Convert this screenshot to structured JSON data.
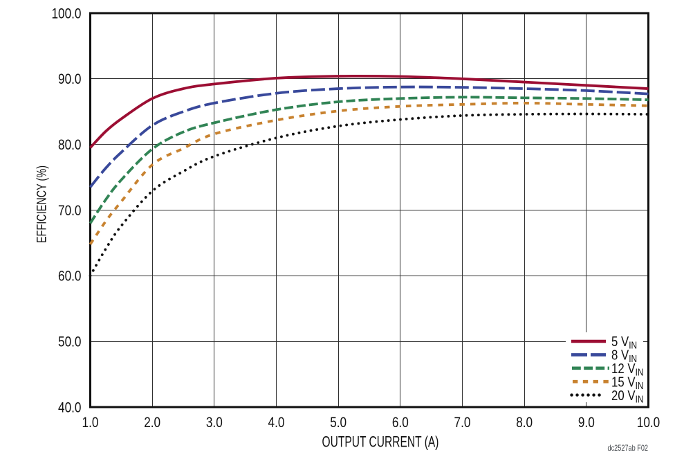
{
  "chart_data": {
    "type": "line",
    "title": "",
    "xlabel": "OUTPUT CURRENT (A)",
    "ylabel": "EFFICIENCY (%)",
    "xlim": [
      1.0,
      10.0
    ],
    "ylim": [
      40.0,
      100.0
    ],
    "grid": true,
    "legend_position": "inside-bottom-right",
    "x_tick_labels": [
      "1.0",
      "2.0",
      "3.0",
      "4.0",
      "5.0",
      "6.0",
      "7.0",
      "8.0",
      "9.0",
      "10.0"
    ],
    "x_tick_values": [
      1,
      2,
      3,
      4,
      5,
      6,
      7,
      8,
      9,
      10
    ],
    "y_tick_labels": [
      "40.0",
      "50.0",
      "60.0",
      "70.0",
      "80.0",
      "90.0",
      "100.0"
    ],
    "y_tick_values": [
      40,
      50,
      60,
      70,
      80,
      90,
      100
    ],
    "x": [
      1,
      1.25,
      1.5,
      2,
      2.5,
      3,
      4,
      5,
      6,
      7,
      8,
      9,
      10
    ],
    "series": [
      {
        "name": "5 VIN",
        "label_main": "5 V",
        "label_sub": "IN",
        "color": "#9C0E33",
        "dash": "solid",
        "values": [
          79.5,
          82.0,
          83.9,
          87.0,
          88.5,
          89.2,
          90.1,
          90.4,
          90.35,
          90.0,
          89.5,
          89.0,
          88.5
        ]
      },
      {
        "name": "8 VIN",
        "label_main": "8 V",
        "label_sub": "IN",
        "color": "#39499B",
        "dash": "long-dash",
        "values": [
          73.5,
          76.4,
          78.8,
          82.9,
          85.0,
          86.3,
          87.8,
          88.5,
          88.75,
          88.7,
          88.5,
          88.2,
          87.7
        ]
      },
      {
        "name": "12 VIN",
        "label_main": "12 V",
        "label_sub": "IN",
        "color": "#318455",
        "dash": "dash",
        "values": [
          68.0,
          71.6,
          74.6,
          79.3,
          81.9,
          83.3,
          85.3,
          86.5,
          87.0,
          87.2,
          87.1,
          87.0,
          86.8
        ]
      },
      {
        "name": "15 VIN",
        "label_main": "15 V",
        "label_sub": "IN",
        "color": "#C8822F",
        "dash": "short-dash",
        "values": [
          64.8,
          68.3,
          71.3,
          76.9,
          79.4,
          81.6,
          83.7,
          85.1,
          85.8,
          86.1,
          86.3,
          86.1,
          85.9
        ]
      },
      {
        "name": "20 VIN",
        "label_main": "20 V",
        "label_sub": "IN",
        "color": "#111111",
        "dash": "dot",
        "values": [
          60.0,
          64.1,
          67.6,
          72.9,
          75.9,
          78.2,
          81.0,
          82.8,
          83.8,
          84.4,
          84.6,
          84.65,
          84.6
        ]
      }
    ],
    "caption": "dc2527ab F02",
    "frame_color": "#0f0f0f",
    "grid_color": "#303030",
    "background_color": "#ffffff"
  }
}
